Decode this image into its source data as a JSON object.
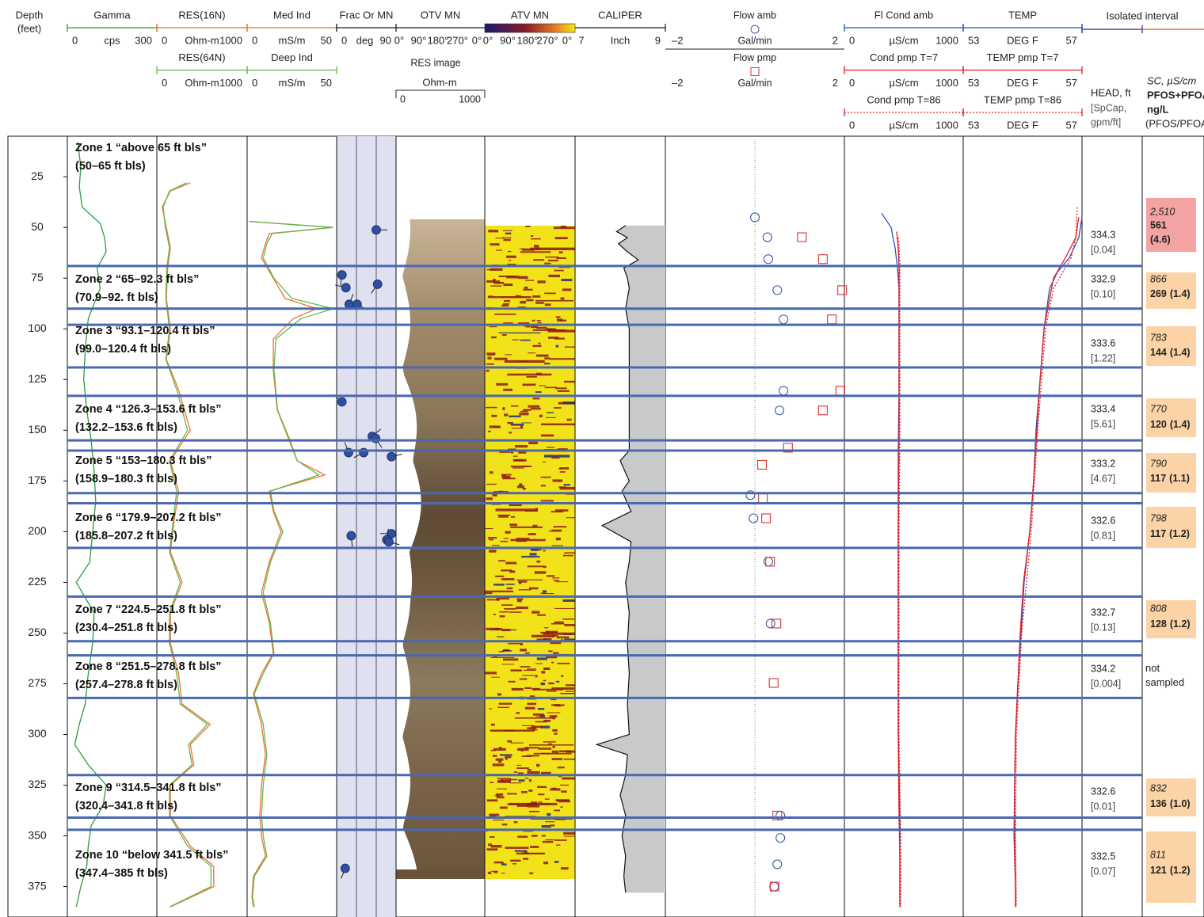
{
  "header": {
    "depth_title": "Depth",
    "depth_unit": "(feet)",
    "isolated_interval": "Isolated interval",
    "head_title": "HEAD, ft",
    "spcap_title_1": "[SpCap,",
    "spcap_title_2": "gpm/ft]",
    "sc_title": "SC, µS/cm",
    "pfos_title_1": "PFOS+PFOA,",
    "pfos_title_2": "ng/L",
    "ratio_title": "(PFOS/PFOA)"
  },
  "depth_axis": {
    "lim": [
      5,
      390
    ],
    "ticks": [
      25,
      50,
      75,
      100,
      125,
      150,
      175,
      200,
      225,
      250,
      275,
      300,
      325,
      350,
      375
    ]
  },
  "tracks": {
    "gamma": {
      "curves": [
        {
          "name": "Gamma",
          "unit": "cps",
          "xticks": [
            0,
            300
          ],
          "xlim": [
            0,
            300
          ],
          "color": "#2e9a40",
          "depth": [
            8,
            20,
            30,
            40,
            48,
            55,
            62,
            70,
            80,
            95,
            110,
            125,
            140,
            155,
            170,
            185,
            200,
            215,
            225,
            240,
            255,
            270,
            285,
            295,
            305,
            315,
            325,
            335,
            345,
            355,
            365,
            375,
            385
          ],
          "values": [
            35,
            45,
            40,
            50,
            110,
            125,
            130,
            100,
            110,
            70,
            60,
            55,
            65,
            80,
            90,
            95,
            85,
            75,
            30,
            90,
            85,
            70,
            60,
            40,
            25,
            70,
            130,
            120,
            80,
            70,
            65,
            45,
            30
          ]
        }
      ]
    },
    "res": {
      "curves": [
        {
          "name": "RES(16N)",
          "unit": "Ohm-m",
          "xticks": [
            0,
            1000
          ],
          "xlim": [
            0,
            1000
          ],
          "color": "#f07030",
          "depth": [
            28,
            32,
            40,
            50,
            60,
            70,
            85,
            100,
            115,
            130,
            150,
            165,
            180,
            195,
            210,
            225,
            240,
            255,
            270,
            285,
            295,
            305,
            315,
            325,
            340,
            355,
            365,
            375,
            385
          ],
          "values": [
            370,
            150,
            60,
            105,
            150,
            120,
            105,
            150,
            105,
            240,
            370,
            150,
            240,
            190,
            150,
            280,
            150,
            150,
            240,
            280,
            590,
            370,
            410,
            150,
            150,
            370,
            630,
            630,
            150
          ]
        },
        {
          "name": "RES(64N)",
          "unit": "Ohm-m",
          "xticks": [
            0,
            1000
          ],
          "xlim": [
            0,
            1000
          ],
          "color": "#62b84e",
          "depth": [
            28,
            32,
            40,
            50,
            60,
            70,
            85,
            100,
            115,
            130,
            150,
            165,
            180,
            195,
            210,
            225,
            240,
            255,
            270,
            285,
            295,
            305,
            315,
            325,
            340,
            355,
            365,
            375,
            385
          ],
          "values": [
            330,
            140,
            70,
            95,
            140,
            110,
            100,
            140,
            100,
            220,
            340,
            140,
            220,
            180,
            140,
            260,
            140,
            140,
            220,
            260,
            560,
            350,
            390,
            140,
            140,
            340,
            600,
            600,
            140
          ]
        }
      ]
    },
    "ind": {
      "curves": [
        {
          "name": "Med Ind",
          "unit": "mS/m",
          "xticks": [
            0,
            50
          ],
          "xlim": [
            0,
            50
          ],
          "color": "#f07030",
          "depth": [
            47,
            50,
            53,
            58,
            65,
            75,
            85,
            90,
            95,
            105,
            120,
            140,
            155,
            165,
            172,
            180,
            190,
            200,
            215,
            230,
            245,
            260,
            270,
            280,
            295,
            310,
            325,
            340,
            350,
            360,
            370,
            380,
            385
          ],
          "values": [
            1.3,
            47.8,
            12.4,
            10.2,
            8,
            14.6,
            21.2,
            38.9,
            25.7,
            14.6,
            14.6,
            16.8,
            23.5,
            27.9,
            43.4,
            12.4,
            14.6,
            19,
            12.4,
            8,
            12.4,
            14.6,
            8,
            3.5,
            8,
            10.2,
            8,
            7.1,
            8,
            10.2,
            3.5,
            2.7,
            3.5
          ]
        },
        {
          "name": "Deep Ind",
          "unit": "mS/m",
          "xticks": [
            0,
            50
          ],
          "xlim": [
            0,
            50
          ],
          "color": "#62b84e",
          "depth": [
            47,
            50,
            53,
            58,
            65,
            75,
            85,
            90,
            95,
            105,
            120,
            140,
            155,
            165,
            172,
            180,
            190,
            200,
            215,
            230,
            245,
            260,
            270,
            280,
            295,
            310,
            325,
            340,
            350,
            360,
            370,
            380,
            385
          ],
          "values": [
            1,
            48,
            14,
            11,
            9,
            15,
            25,
            48,
            30,
            16,
            15,
            17,
            24,
            28,
            40,
            13,
            15,
            20,
            13,
            9,
            13,
            15,
            9,
            4,
            9,
            11,
            9,
            8,
            9,
            11,
            4,
            3,
            4
          ]
        }
      ]
    },
    "frac": {
      "title": "Frac Or MN",
      "unit": "deg",
      "xticks": [
        0,
        90
      ],
      "xlim": [
        0,
        90
      ],
      "color": "#2f4f9f",
      "band_color": "#dfe1f1",
      "depth": [
        51.2,
        73.4,
        79.7,
        87.9,
        87.9,
        78,
        136,
        153,
        154,
        161,
        161,
        163,
        202,
        201,
        204,
        205,
        366
      ],
      "dip": [
        60,
        8,
        14,
        19,
        31,
        62,
        8,
        54,
        59,
        41,
        18,
        83,
        22,
        83,
        76,
        79,
        13
      ]
    },
    "otv": {
      "title": "OTV MN",
      "angle_labels": [
        "0°",
        "90°",
        "180°",
        "270°",
        "0°"
      ],
      "res_image": {
        "title": "RES image",
        "unit": "Ohm-m",
        "xticks": [
          0,
          1000
        ]
      }
    },
    "atv": {
      "title": "ATV MN",
      "angle_labels": [
        "0°",
        "90°",
        "180°",
        "270°",
        "0°"
      ],
      "colorbar_ticks": [
        7
      ]
    },
    "cal": {
      "title": "CALIPER",
      "unit": "Inch",
      "xticks": [
        9
      ],
      "xlim": [
        4,
        9
      ],
      "color": "#111111",
      "fill": "#c8c9cb",
      "depth": [
        49,
        52,
        55,
        58,
        62,
        66,
        70,
        75,
        80,
        90,
        100,
        115,
        130,
        145,
        160,
        165,
        175,
        180,
        190,
        197,
        205,
        215,
        225,
        240,
        255,
        270,
        285,
        300,
        305,
        310,
        320,
        330,
        340,
        350,
        360,
        370,
        378
      ],
      "values": [
        6.8,
        6.3,
        6.9,
        6.4,
        6.9,
        7.5,
        6.7,
        6.9,
        7,
        6.8,
        7,
        7,
        7,
        7,
        7,
        6.5,
        7,
        6.6,
        7.1,
        5.5,
        7.1,
        7,
        6.8,
        7,
        6.9,
        7,
        6.9,
        7,
        5.2,
        6.9,
        6.8,
        6.5,
        6.8,
        6.6,
        6.8,
        6.7,
        6.8
      ]
    },
    "flow": {
      "series": [
        {
          "name": "Flow amb",
          "unit": "Gal/min",
          "marker": "circle",
          "color": "#3a5ba8",
          "xticks": [
            {
              "value": -2,
              "label": "–2"
            },
            2
          ],
          "xlim": [
            -2,
            2
          ],
          "depth": [
            45,
            54.8,
            65.6,
            80.9,
            95.3,
            130.5,
            140.2,
            182,
            193.4,
            214.8,
            245.3,
            340,
            351,
            364,
            375
          ],
          "values": [
            0,
            0.28,
            0.3,
            0.5,
            0.64,
            0.64,
            0.55,
            -0.1,
            -0.03,
            0.3,
            0.35,
            0.57,
            0.57,
            0.5,
            0.43
          ]
        },
        {
          "name": "Flow pmp",
          "unit": "Gal/min",
          "marker": "square",
          "color": "#e03030",
          "xticks": [
            {
              "value": -2,
              "label": "–2"
            },
            2
          ],
          "xlim": [
            -2,
            2
          ],
          "depth": [
            54.8,
            65.6,
            80.9,
            95.3,
            130.5,
            140.2,
            158.6,
            167,
            183.5,
            193.4,
            214.8,
            245.3,
            274.6,
            340,
            375
          ],
          "values": [
            1.05,
            1.52,
            1.95,
            1.72,
            1.91,
            1.52,
            0.74,
            0.16,
            0.18,
            0.25,
            0.34,
            0.48,
            0.42,
            0.5,
            0.44
          ]
        }
      ]
    },
    "cond": {
      "curves": [
        {
          "name": "Fl Cond amb",
          "unit": "µS/cm",
          "xticks": [
            0,
            1000
          ],
          "xlim": [
            0,
            1000
          ],
          "color": "#3050c0",
          "dashed": false,
          "depth": [
            43,
            50,
            60,
            70,
            80,
            100,
            130,
            160,
            200,
            250,
            300,
            340,
            360,
            385
          ],
          "values": [
            313,
            393,
            427,
            447,
            460,
            460,
            460,
            453,
            453,
            453,
            453,
            467,
            467,
            467
          ]
        },
        {
          "name": "Cond  pmp T=7",
          "unit": "µS/cm",
          "xticks": [
            0,
            1000
          ],
          "xlim": [
            0,
            1000
          ],
          "color": "#e02020",
          "dashed": false,
          "depth": [
            52,
            60,
            70,
            100,
            150,
            200,
            250,
            300,
            340,
            360,
            385
          ],
          "values": [
            440,
            453,
            460,
            460,
            460,
            453,
            453,
            453,
            460,
            467,
            467
          ]
        },
        {
          "name": "Cond pmp T=86",
          "unit": "µS/cm",
          "xticks": [
            0,
            1000
          ],
          "xlim": [
            0,
            1000
          ],
          "color": "#e02020",
          "dashed": true,
          "depth": [
            55,
            60,
            70,
            100,
            150,
            200,
            250,
            300,
            350,
            385
          ],
          "values": [
            453,
            460,
            467,
            467,
            467,
            460,
            460,
            460,
            473,
            473
          ]
        }
      ]
    },
    "temp": {
      "curves": [
        {
          "name": "TEMP",
          "unit": "DEG F",
          "xticks": [
            53,
            57
          ],
          "xlim": [
            53,
            57
          ],
          "color": "#3050c0",
          "dashed": false,
          "depth": [
            45,
            55,
            65,
            72,
            80,
            100,
            125,
            150,
            175,
            200,
            225,
            250,
            275,
            300,
            325,
            350,
            375,
            385
          ],
          "values": [
            57,
            56.89,
            56.57,
            56.17,
            55.91,
            55.72,
            55.59,
            55.45,
            55.37,
            55.24,
            55.05,
            54.95,
            54.84,
            54.76,
            54.73,
            54.73,
            54.76,
            54.76
          ]
        },
        {
          "name": "TEMP pmp T=7",
          "unit": "DEG F",
          "xticks": [
            53,
            57
          ],
          "xlim": [
            53,
            57
          ],
          "color": "#e02020",
          "dashed": false,
          "depth": [
            45,
            55,
            65,
            75,
            100,
            125,
            150,
            175,
            200,
            225,
            250,
            275,
            300,
            325,
            350,
            375,
            385
          ],
          "values": [
            56.89,
            56.79,
            56.44,
            56.04,
            55.72,
            55.59,
            55.48,
            55.37,
            55.24,
            55.03,
            54.92,
            54.84,
            54.76,
            54.73,
            54.71,
            54.76,
            54.76
          ]
        },
        {
          "name": "TEMP pmp T=86",
          "unit": "DEG F",
          "xticks": [
            53,
            57
          ],
          "xlim": [
            53,
            57
          ],
          "color": "#e02020",
          "dashed": true,
          "depth": [
            40,
            55,
            65,
            80,
            100,
            150,
            200,
            250,
            300,
            350,
            385
          ],
          "values": [
            56.84,
            56.79,
            56.63,
            56.04,
            55.77,
            55.51,
            55.29,
            54.97,
            54.79,
            54.76,
            54.79
          ]
        }
      ]
    }
  },
  "interval_line_depths": [
    69,
    90,
    98,
    119,
    133,
    155,
    160,
    181,
    186,
    208,
    232,
    254,
    261,
    282,
    320,
    341,
    347
  ],
  "interval_line_color": "#4a68b0",
  "zones": [
    {
      "label": "Zone 1 “above 65 ft bls”",
      "interval": "(50–65 ft bls)",
      "head": "334.3",
      "spcap": "[0.04]",
      "sc": "2,510",
      "pfos": "561",
      "ratio": "(4.6)",
      "box_color": "#f4a3a3"
    },
    {
      "label": "Zone 2 “65–92.3 ft bls”",
      "interval": "(70.9–92. ft bls)",
      "head": "332.9",
      "spcap": "[0.10]",
      "sc": "866",
      "pfos": "269",
      "ratio": "(1.4)",
      "box_color": "#fbd3a6"
    },
    {
      "label": "Zone 3 “93.1–120.4 ft bls”",
      "interval": "(99.0–120.4 ft bls)",
      "head": "333.6",
      "spcap": "[1.22]",
      "sc": "783",
      "pfos": "144",
      "ratio": "(1.4)",
      "box_color": "#fbd3a6"
    },
    {
      "label": "Zone 4 “126.3–153.6 ft bls”",
      "interval": "(132.2–153.6 ft bls)",
      "head": "333.4",
      "spcap": "[5.61]",
      "sc": "770",
      "pfos": "120",
      "ratio": "(1.4)",
      "box_color": "#fbd3a6"
    },
    {
      "label": "Zone 5 “153–180.3 ft bls”",
      "interval": "(158.9–180.3 ft bls)",
      "head": "333.2",
      "spcap": "[4.67]",
      "sc": "790",
      "pfos": "117",
      "ratio": "(1.1)",
      "box_color": "#fbd3a6"
    },
    {
      "label": "Zone 6 “179.9–207.2 ft bls”",
      "interval": "(185.8–207.2 ft bls)",
      "head": "332.6",
      "spcap": "[0.81]",
      "sc": "798",
      "pfos": "117",
      "ratio": "(1.2)",
      "box_color": "#fbd3a6"
    },
    {
      "label": "Zone 7 “224.5–251.8 ft bls”",
      "interval": "(230.4–251.8 ft bls)",
      "head": "332.7",
      "spcap": "[0.13]",
      "sc": "808",
      "pfos": "128",
      "ratio": "(1.2)",
      "box_color": "#fbd3a6"
    },
    {
      "label": "Zone 8 “251.5–278.8 ft bls”",
      "interval": "(257.4–278.8 ft bls)",
      "head": "334.2",
      "spcap": "[0.004]",
      "note": "not sampled"
    },
    {
      "label": "Zone 9 “314.5–341.8 ft bls”",
      "interval": "(320.4–341.8 ft bls)",
      "head": "332.6",
      "spcap": "[0.01]",
      "sc": "832",
      "pfos": "136",
      "ratio": "(1.0)",
      "box_color": "#fbd3a6"
    },
    {
      "label": "Zone 10 “below 341.5 ft bls”",
      "interval": "(347.4–385 ft bls)",
      "head": "332.5",
      "spcap": "[0.07]",
      "sc": "811",
      "pfos": "121",
      "ratio": "(1.2)",
      "box_color": "#fbd3a6"
    }
  ]
}
